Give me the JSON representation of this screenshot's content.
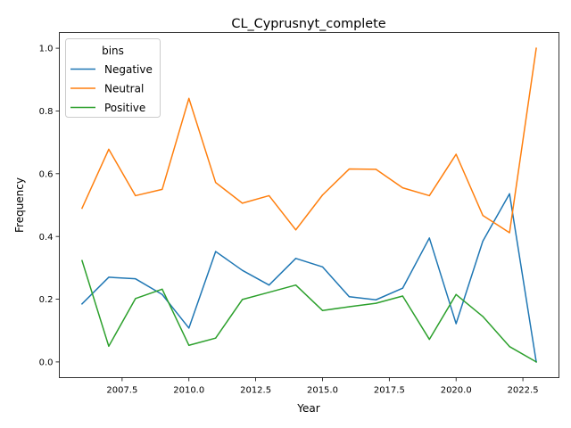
{
  "chart_data": {
    "type": "line",
    "title": "CL_Cyprusnyt_complete",
    "xlabel": "Year",
    "ylabel": "Frequency",
    "xlim": [
      2005.15,
      2023.85
    ],
    "ylim": [
      -0.05,
      1.05
    ],
    "x_ticks": [
      2007.5,
      2010.0,
      2012.5,
      2015.0,
      2017.5,
      2020.0,
      2022.5
    ],
    "x_tick_labels": [
      "2007.5",
      "2010.0",
      "2012.5",
      "2015.0",
      "2017.5",
      "2020.0",
      "2022.5"
    ],
    "y_ticks": [
      0.0,
      0.2,
      0.4,
      0.6,
      0.8,
      1.0
    ],
    "y_tick_labels": [
      "0.0",
      "0.2",
      "0.4",
      "0.6",
      "0.8",
      "1.0"
    ],
    "grid": false,
    "legend": {
      "title": "bins",
      "position": "top-left"
    },
    "x": [
      2006,
      2007,
      2008,
      2009,
      2010,
      2011,
      2012,
      2013,
      2014,
      2015,
      2016,
      2017,
      2018,
      2019,
      2020,
      2021,
      2022,
      2023
    ],
    "series": [
      {
        "name": "Negative",
        "color": "#1f77b4",
        "values": [
          0.185,
          0.27,
          0.265,
          0.215,
          0.108,
          0.352,
          0.292,
          0.245,
          0.33,
          0.303,
          0.208,
          0.198,
          0.235,
          0.395,
          0.122,
          0.385,
          0.536,
          0.0
        ]
      },
      {
        "name": "Neutral",
        "color": "#ff7f0e",
        "values": [
          0.49,
          0.678,
          0.53,
          0.55,
          0.84,
          0.572,
          0.506,
          0.53,
          0.421,
          0.532,
          0.615,
          0.614,
          0.555,
          0.53,
          0.662,
          0.467,
          0.412,
          1.0
        ]
      },
      {
        "name": "Positive",
        "color": "#2ca02c",
        "values": [
          0.323,
          0.05,
          0.202,
          0.232,
          0.053,
          0.076,
          0.199,
          0.222,
          0.245,
          0.164,
          0.176,
          0.187,
          0.21,
          0.072,
          0.215,
          0.145,
          0.049,
          0.0
        ]
      }
    ]
  }
}
